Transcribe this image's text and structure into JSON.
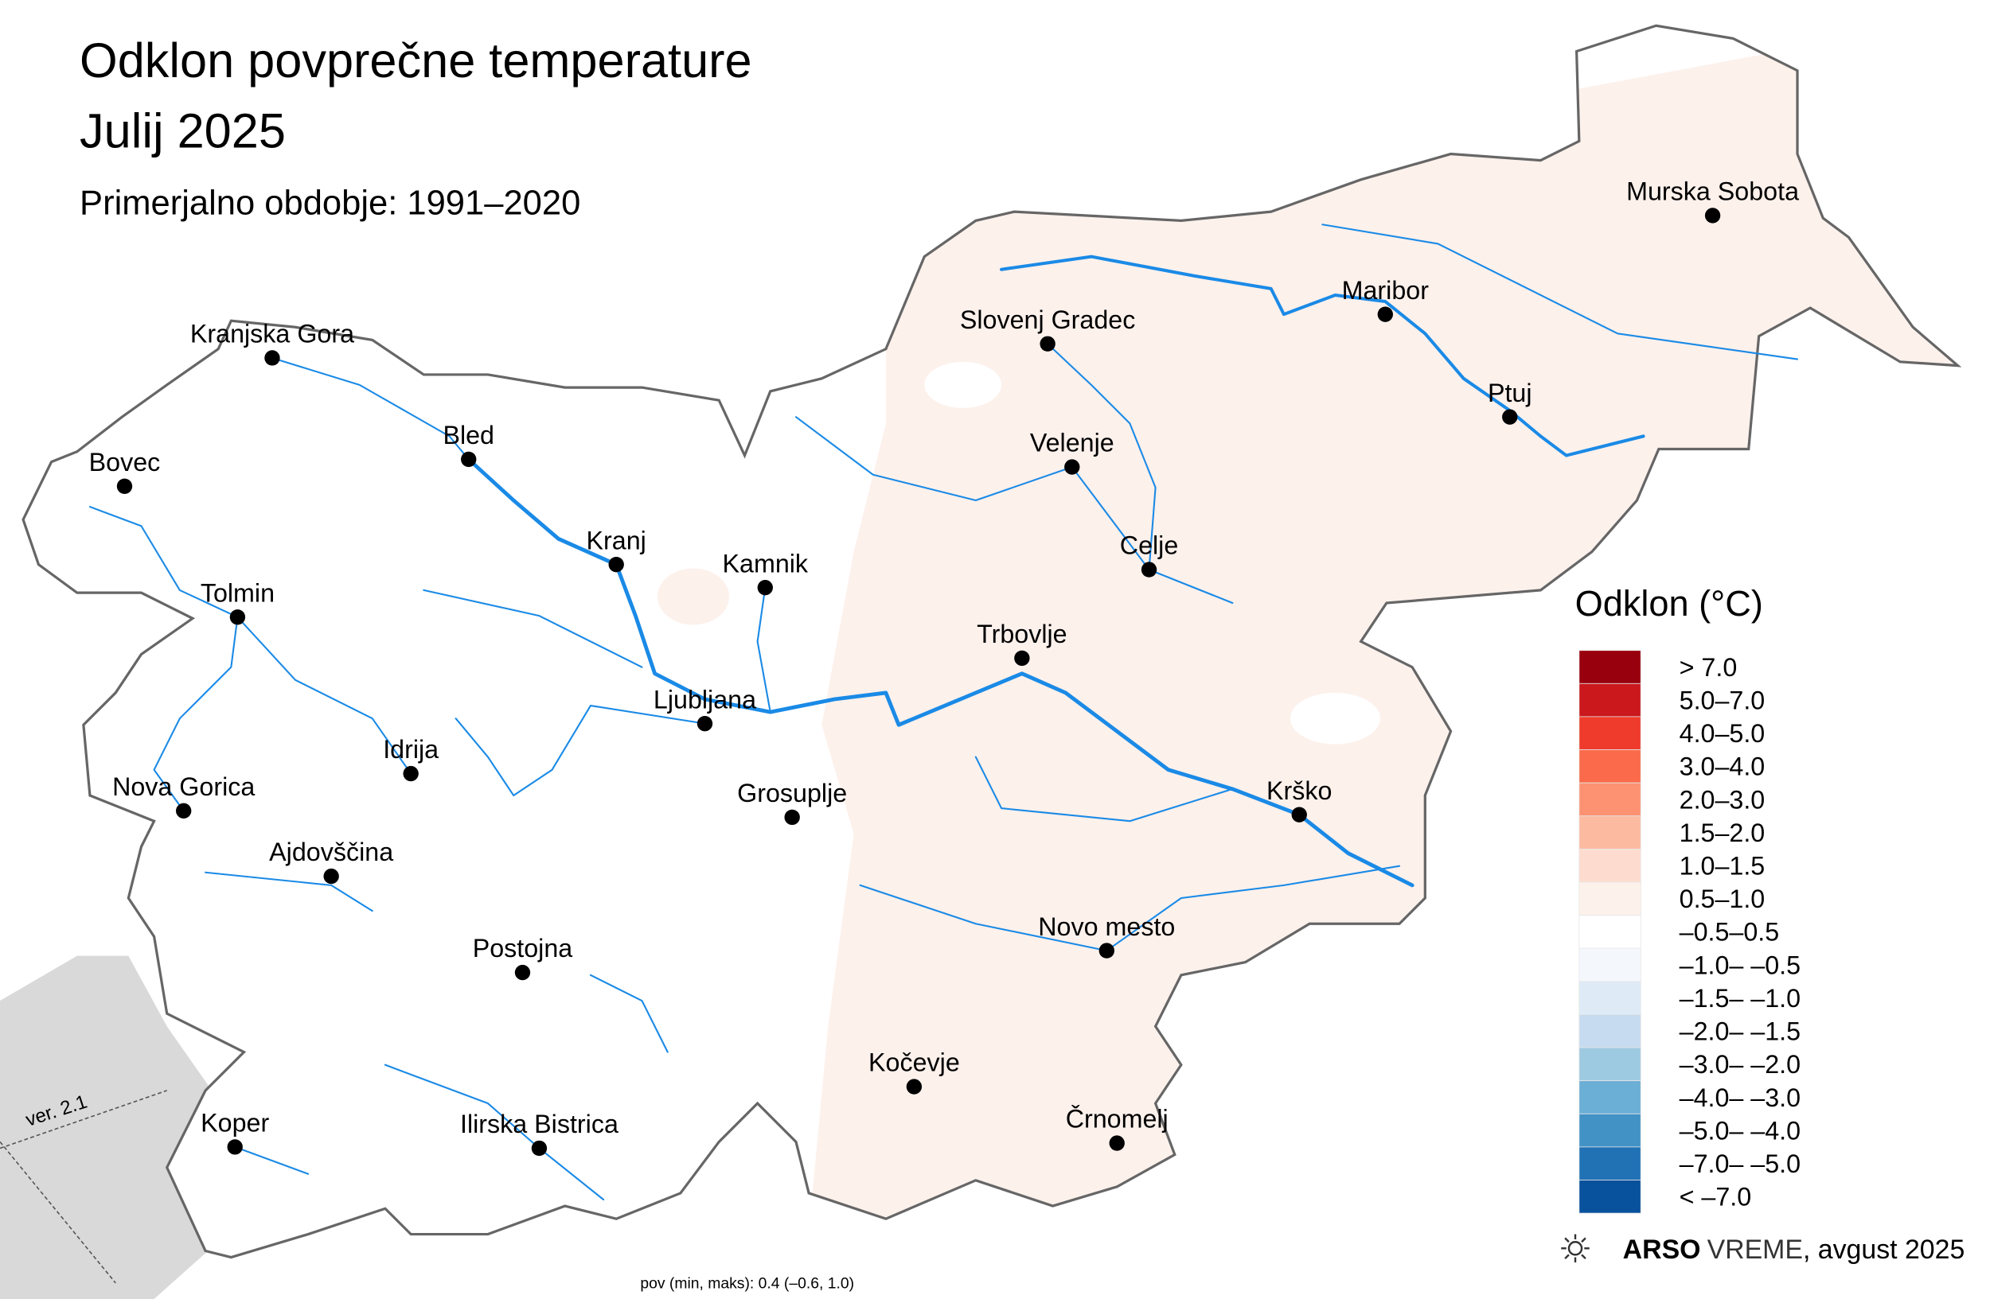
{
  "title": {
    "lines": [
      "Odklon povprečne temperature",
      "Julij 2025"
    ]
  },
  "subtitle": "Primerjalno obdobje: 1991–2020",
  "cities": [
    {
      "name": "Kranjska Gora"
    },
    {
      "name": "Bled"
    },
    {
      "name": "Bovec"
    },
    {
      "name": "Kranj"
    },
    {
      "name": "Kamnik"
    },
    {
      "name": "Tolmin"
    },
    {
      "name": "Ljubljana"
    },
    {
      "name": "Idrija"
    },
    {
      "name": "Nova Gorica"
    },
    {
      "name": "Ajdovščina"
    },
    {
      "name": "Grosuplje"
    },
    {
      "name": "Postojna"
    },
    {
      "name": "Ilirska Bistrica"
    },
    {
      "name": "Koper"
    },
    {
      "name": "Kočevje"
    },
    {
      "name": "Črnomelj"
    },
    {
      "name": "Novo mesto"
    },
    {
      "name": "Krško"
    },
    {
      "name": "Trbovlje"
    },
    {
      "name": "Celje"
    },
    {
      "name": "Velenje"
    },
    {
      "name": "Slovenj Gradec"
    },
    {
      "name": "Maribor"
    },
    {
      "name": "Ptuj"
    },
    {
      "name": "Murska Sobota"
    }
  ],
  "legend": {
    "title": "Odklon (°C)",
    "items": [
      {
        "label": "> 7.0",
        "color": "#99000d"
      },
      {
        "label": "5.0–7.0",
        "color": "#cb181d"
      },
      {
        "label": "4.0–5.0",
        "color": "#ef3b2c"
      },
      {
        "label": "3.0–4.0",
        "color": "#fb6a4a"
      },
      {
        "label": "2.0–3.0",
        "color": "#fc9272"
      },
      {
        "label": "1.5–2.0",
        "color": "#fcbba1"
      },
      {
        "label": "1.0–1.5",
        "color": "#fddccf"
      },
      {
        "label": "0.5–1.0",
        "color": "#fdf1ec"
      },
      {
        "label": "–0.5–0.5",
        "color": "#ffffff"
      },
      {
        "label": "–1.0– –0.5",
        "color": "#f4f8fd"
      },
      {
        "label": "–1.5– –1.0",
        "color": "#deebf7"
      },
      {
        "label": "–2.0– –1.5",
        "color": "#c6dbef"
      },
      {
        "label": "–3.0– –2.0",
        "color": "#9ecae1"
      },
      {
        "label": "–4.0– –3.0",
        "color": "#6baed6"
      },
      {
        "label": "–5.0– –4.0",
        "color": "#4292c6"
      },
      {
        "label": "–7.0– –5.0",
        "color": "#2171b5"
      },
      {
        "label": "< –7.0",
        "color": "#08519c"
      }
    ]
  },
  "footer": {
    "brand": "ARSO",
    "service": "VREME",
    "date": ", avgust 2025"
  },
  "stats": "pov (min, maks): 0.4 (–0.6, 1.0)",
  "version": "ver. 2.1"
}
